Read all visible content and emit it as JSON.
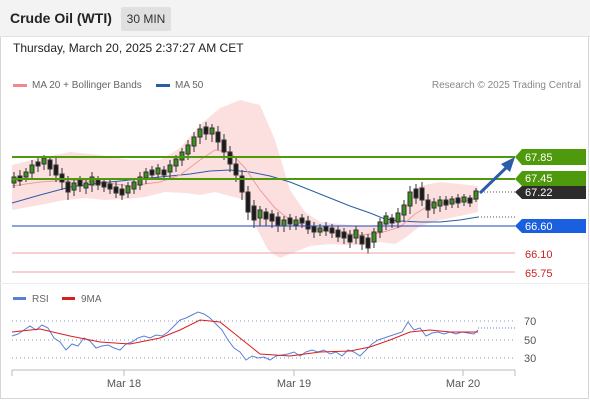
{
  "header": {
    "title": "Crude Oil (WTI)",
    "timeframe_label": "30 MIN"
  },
  "datetime": "Thursday, March 20, 2025 2:37:27 AM CET",
  "legend": {
    "items": [
      {
        "label": "MA 20 + Bollinger Bands",
        "color": "#f08a8a"
      },
      {
        "label": "MA 50",
        "color": "#2b5ca8"
      }
    ],
    "credit": "Research © 2025 Trading Central"
  },
  "price_levels": [
    {
      "value": "67.85",
      "bg": "#4f9a0c",
      "fg": "#ffffff"
    },
    {
      "value": "67.45",
      "bg": "#4f9a0c",
      "fg": "#ffffff"
    },
    {
      "value": "67.22",
      "bg": "#2c2c2c",
      "fg": "#ffffff"
    },
    {
      "value": "66.60",
      "bg": "#1a5fe0",
      "fg": "#ffffff"
    },
    {
      "value": "66.10",
      "bg": "none",
      "fg": "#cc2222"
    },
    {
      "value": "65.75",
      "bg": "none",
      "fg": "#cc2222"
    }
  ],
  "rsi": {
    "legend": [
      {
        "label": "RSI",
        "color": "#5b7fd6"
      },
      {
        "label": "9MA",
        "color": "#d91e1e"
      }
    ],
    "levels": [
      "70",
      "50",
      "30"
    ]
  },
  "x_axis": {
    "labels": [
      "Mar 18",
      "Mar 19",
      "Mar 20"
    ]
  }
}
